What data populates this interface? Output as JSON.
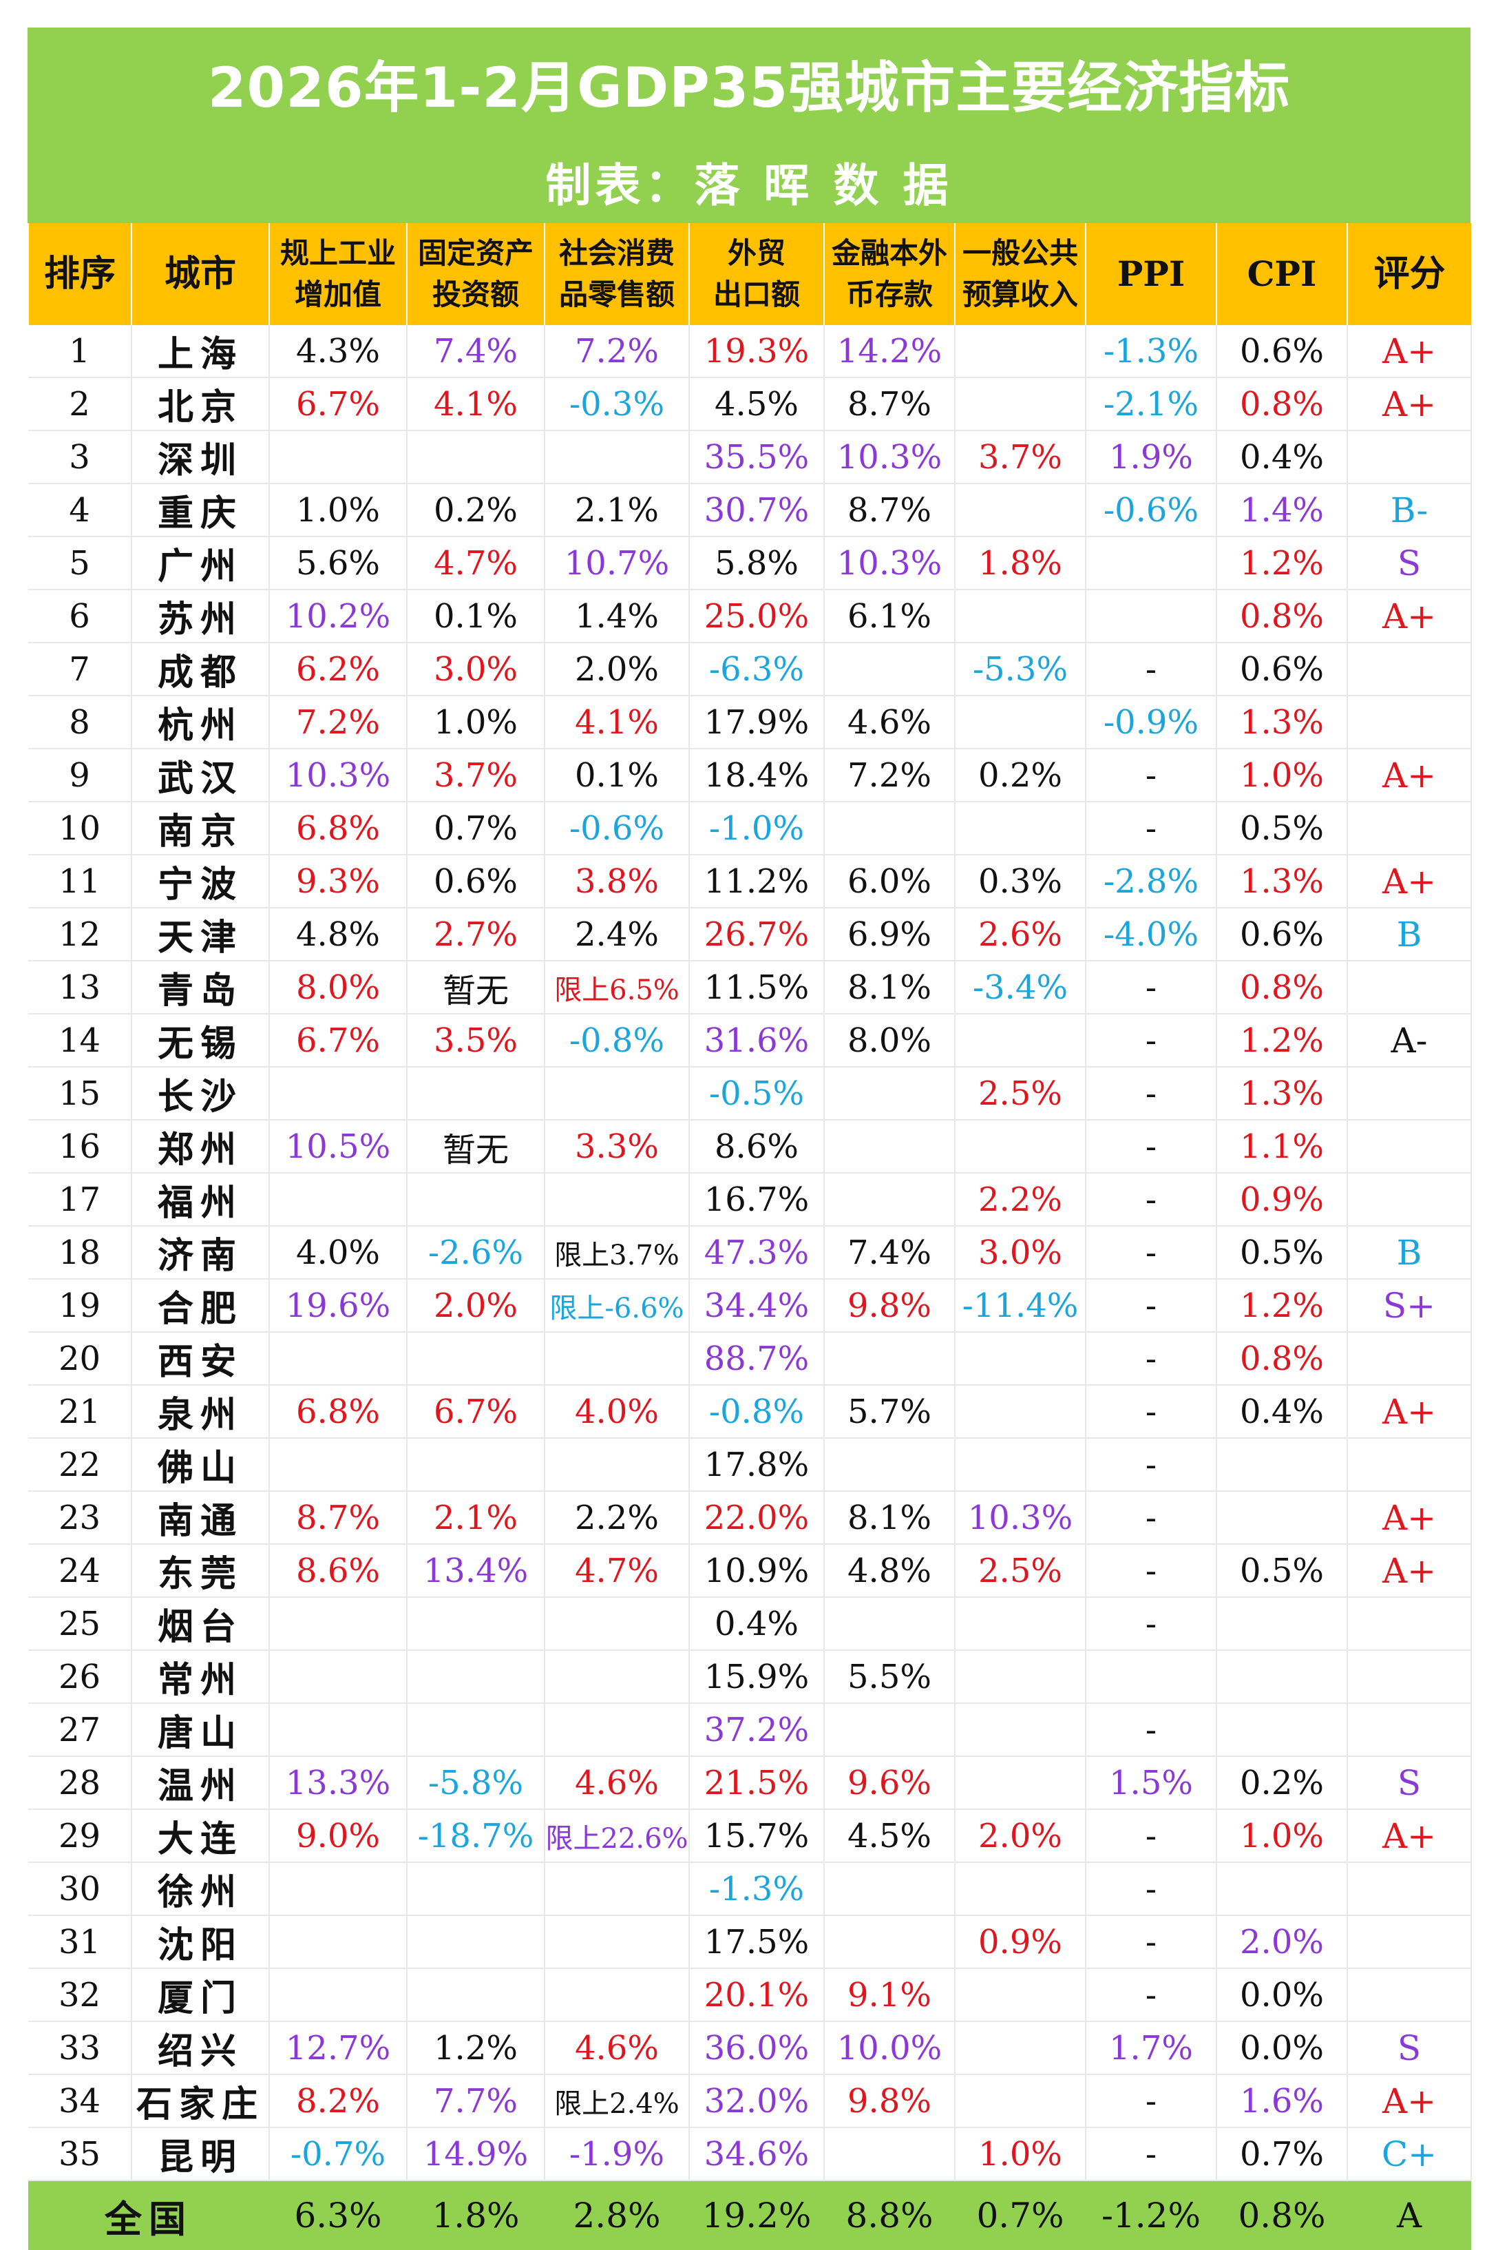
{
  "title": "2026年1-2月GDP35强城市主要经济指标",
  "subtitle": "制表：落 晖 数 据",
  "colors": {
    "green": "#92d050",
    "orange": "#ffc000",
    "black": "#111111",
    "red": "#e0161e",
    "purple": "#8a38d6",
    "blue": "#1aa6dd"
  },
  "headers": [
    [
      "排序"
    ],
    [
      "城市"
    ],
    [
      "规上工业",
      "增加值"
    ],
    [
      "固定资产",
      "投资额"
    ],
    [
      "社会消费",
      "品零售额"
    ],
    [
      "外贸",
      "出口额"
    ],
    [
      "金融本外",
      "币存款"
    ],
    [
      "一般公共",
      "预算收入"
    ],
    [
      "PPI"
    ],
    [
      "CPI"
    ],
    [
      "评分"
    ]
  ],
  "rows": [
    {
      "rank": "1",
      "city": "上海",
      "cells": [
        [
          "4.3%",
          "k"
        ],
        [
          "7.4%",
          "p"
        ],
        [
          "7.2%",
          "p"
        ],
        [
          "19.3%",
          "r"
        ],
        [
          "14.2%",
          "p"
        ],
        [
          "",
          ""
        ],
        [
          "-1.3%",
          "b"
        ],
        [
          "0.6%",
          "k"
        ],
        [
          "A+",
          "r"
        ]
      ]
    },
    {
      "rank": "2",
      "city": "北京",
      "cells": [
        [
          "6.7%",
          "r"
        ],
        [
          "4.1%",
          "r"
        ],
        [
          "-0.3%",
          "b"
        ],
        [
          "4.5%",
          "k"
        ],
        [
          "8.7%",
          "k"
        ],
        [
          "",
          ""
        ],
        [
          "-2.1%",
          "b"
        ],
        [
          "0.8%",
          "r"
        ],
        [
          "A+",
          "r"
        ]
      ]
    },
    {
      "rank": "3",
      "city": "深圳",
      "cells": [
        [
          "",
          ""
        ],
        [
          "",
          ""
        ],
        [
          "",
          ""
        ],
        [
          "35.5%",
          "p"
        ],
        [
          "10.3%",
          "p"
        ],
        [
          "3.7%",
          "r"
        ],
        [
          "1.9%",
          "p"
        ],
        [
          "0.4%",
          "k"
        ],
        [
          "",
          ""
        ]
      ]
    },
    {
      "rank": "4",
      "city": "重庆",
      "cells": [
        [
          "1.0%",
          "k"
        ],
        [
          "0.2%",
          "k"
        ],
        [
          "2.1%",
          "k"
        ],
        [
          "30.7%",
          "p"
        ],
        [
          "8.7%",
          "k"
        ],
        [
          "",
          ""
        ],
        [
          "-0.6%",
          "b"
        ],
        [
          "1.4%",
          "p"
        ],
        [
          "B-",
          "b"
        ]
      ]
    },
    {
      "rank": "5",
      "city": "广州",
      "cells": [
        [
          "5.6%",
          "k"
        ],
        [
          "4.7%",
          "r"
        ],
        [
          "10.7%",
          "p"
        ],
        [
          "5.8%",
          "k"
        ],
        [
          "10.3%",
          "p"
        ],
        [
          "1.8%",
          "r"
        ],
        [
          "",
          ""
        ],
        [
          "1.2%",
          "r"
        ],
        [
          "S",
          "p"
        ]
      ]
    },
    {
      "rank": "6",
      "city": "苏州",
      "cells": [
        [
          "10.2%",
          "p"
        ],
        [
          "0.1%",
          "k"
        ],
        [
          "1.4%",
          "k"
        ],
        [
          "25.0%",
          "r"
        ],
        [
          "6.1%",
          "k"
        ],
        [
          "",
          ""
        ],
        [
          "",
          ""
        ],
        [
          "0.8%",
          "r"
        ],
        [
          "A+",
          "r"
        ]
      ]
    },
    {
      "rank": "7",
      "city": "成都",
      "cells": [
        [
          "6.2%",
          "r"
        ],
        [
          "3.0%",
          "r"
        ],
        [
          "2.0%",
          "k"
        ],
        [
          "-6.3%",
          "b"
        ],
        [
          "",
          ""
        ],
        [
          "-5.3%",
          "b"
        ],
        [
          "-",
          "k"
        ],
        [
          "0.6%",
          "k"
        ],
        [
          "",
          ""
        ]
      ]
    },
    {
      "rank": "8",
      "city": "杭州",
      "cells": [
        [
          "7.2%",
          "r"
        ],
        [
          "1.0%",
          "k"
        ],
        [
          "4.1%",
          "r"
        ],
        [
          "17.9%",
          "k"
        ],
        [
          "4.6%",
          "k"
        ],
        [
          "",
          ""
        ],
        [
          "-0.9%",
          "b"
        ],
        [
          "1.3%",
          "r"
        ],
        [
          "",
          ""
        ]
      ]
    },
    {
      "rank": "9",
      "city": "武汉",
      "cells": [
        [
          "10.3%",
          "p"
        ],
        [
          "3.7%",
          "r"
        ],
        [
          "0.1%",
          "k"
        ],
        [
          "18.4%",
          "k"
        ],
        [
          "7.2%",
          "k"
        ],
        [
          "0.2%",
          "k"
        ],
        [
          "-",
          "k"
        ],
        [
          "1.0%",
          "r"
        ],
        [
          "A+",
          "r"
        ]
      ]
    },
    {
      "rank": "10",
      "city": "南京",
      "cells": [
        [
          "6.8%",
          "r"
        ],
        [
          "0.7%",
          "k"
        ],
        [
          "-0.6%",
          "b"
        ],
        [
          "-1.0%",
          "b"
        ],
        [
          "",
          ""
        ],
        [
          "",
          ""
        ],
        [
          "-",
          "k"
        ],
        [
          "0.5%",
          "k"
        ],
        [
          "",
          ""
        ]
      ]
    },
    {
      "rank": "11",
      "city": "宁波",
      "cells": [
        [
          "9.3%",
          "r"
        ],
        [
          "0.6%",
          "k"
        ],
        [
          "3.8%",
          "r"
        ],
        [
          "11.2%",
          "k"
        ],
        [
          "6.0%",
          "k"
        ],
        [
          "0.3%",
          "k"
        ],
        [
          "-2.8%",
          "b"
        ],
        [
          "1.3%",
          "r"
        ],
        [
          "A+",
          "r"
        ]
      ]
    },
    {
      "rank": "12",
      "city": "天津",
      "cells": [
        [
          "4.8%",
          "k"
        ],
        [
          "2.7%",
          "r"
        ],
        [
          "2.4%",
          "k"
        ],
        [
          "26.7%",
          "r"
        ],
        [
          "6.9%",
          "k"
        ],
        [
          "2.6%",
          "r"
        ],
        [
          "-4.0%",
          "b"
        ],
        [
          "0.6%",
          "k"
        ],
        [
          "B",
          "b"
        ]
      ]
    },
    {
      "rank": "13",
      "city": "青岛",
      "cells": [
        [
          "8.0%",
          "r"
        ],
        [
          "暂无",
          "k"
        ],
        [
          "限上6.5%",
          "rs"
        ],
        [
          "11.5%",
          "k"
        ],
        [
          "8.1%",
          "k"
        ],
        [
          "-3.4%",
          "b"
        ],
        [
          "-",
          "k"
        ],
        [
          "0.8%",
          "r"
        ],
        [
          "",
          ""
        ]
      ]
    },
    {
      "rank": "14",
      "city": "无锡",
      "cells": [
        [
          "6.7%",
          "r"
        ],
        [
          "3.5%",
          "r"
        ],
        [
          "-0.8%",
          "b"
        ],
        [
          "31.6%",
          "p"
        ],
        [
          "8.0%",
          "k"
        ],
        [
          "",
          ""
        ],
        [
          "-",
          "k"
        ],
        [
          "1.2%",
          "r"
        ],
        [
          "A-",
          "k"
        ]
      ]
    },
    {
      "rank": "15",
      "city": "长沙",
      "cells": [
        [
          "",
          ""
        ],
        [
          "",
          ""
        ],
        [
          "",
          ""
        ],
        [
          "-0.5%",
          "b"
        ],
        [
          "",
          ""
        ],
        [
          "2.5%",
          "r"
        ],
        [
          "-",
          "k"
        ],
        [
          "1.3%",
          "r"
        ],
        [
          "",
          ""
        ]
      ]
    },
    {
      "rank": "16",
      "city": "郑州",
      "cells": [
        [
          "10.5%",
          "p"
        ],
        [
          "暂无",
          "k"
        ],
        [
          "3.3%",
          "r"
        ],
        [
          "8.6%",
          "k"
        ],
        [
          "",
          ""
        ],
        [
          "",
          ""
        ],
        [
          "-",
          "k"
        ],
        [
          "1.1%",
          "r"
        ],
        [
          "",
          ""
        ]
      ]
    },
    {
      "rank": "17",
      "city": "福州",
      "cells": [
        [
          "",
          ""
        ],
        [
          "",
          ""
        ],
        [
          "",
          ""
        ],
        [
          "16.7%",
          "k"
        ],
        [
          "",
          ""
        ],
        [
          "2.2%",
          "r"
        ],
        [
          "-",
          "k"
        ],
        [
          "0.9%",
          "r"
        ],
        [
          "",
          ""
        ]
      ]
    },
    {
      "rank": "18",
      "city": "济南",
      "cells": [
        [
          "4.0%",
          "k"
        ],
        [
          "-2.6%",
          "b"
        ],
        [
          "限上3.7%",
          "ks"
        ],
        [
          "47.3%",
          "p"
        ],
        [
          "7.4%",
          "k"
        ],
        [
          "3.0%",
          "r"
        ],
        [
          "-",
          "k"
        ],
        [
          "0.5%",
          "k"
        ],
        [
          "B",
          "b"
        ]
      ]
    },
    {
      "rank": "19",
      "city": "合肥",
      "cells": [
        [
          "19.6%",
          "p"
        ],
        [
          "2.0%",
          "r"
        ],
        [
          "限上-6.6%",
          "bs"
        ],
        [
          "34.4%",
          "p"
        ],
        [
          "9.8%",
          "r"
        ],
        [
          "-11.4%",
          "b"
        ],
        [
          "-",
          "k"
        ],
        [
          "1.2%",
          "r"
        ],
        [
          "S+",
          "p"
        ]
      ]
    },
    {
      "rank": "20",
      "city": "西安",
      "cells": [
        [
          "",
          ""
        ],
        [
          "",
          ""
        ],
        [
          "",
          ""
        ],
        [
          "88.7%",
          "p"
        ],
        [
          "",
          ""
        ],
        [
          "",
          ""
        ],
        [
          "-",
          "k"
        ],
        [
          "0.8%",
          "r"
        ],
        [
          "",
          ""
        ]
      ]
    },
    {
      "rank": "21",
      "city": "泉州",
      "cells": [
        [
          "6.8%",
          "r"
        ],
        [
          "6.7%",
          "r"
        ],
        [
          "4.0%",
          "r"
        ],
        [
          "-0.8%",
          "b"
        ],
        [
          "5.7%",
          "k"
        ],
        [
          "",
          ""
        ],
        [
          "-",
          "k"
        ],
        [
          "0.4%",
          "k"
        ],
        [
          "A+",
          "r"
        ]
      ]
    },
    {
      "rank": "22",
      "city": "佛山",
      "cells": [
        [
          "",
          ""
        ],
        [
          "",
          ""
        ],
        [
          "",
          ""
        ],
        [
          "17.8%",
          "k"
        ],
        [
          "",
          ""
        ],
        [
          "",
          ""
        ],
        [
          "-",
          "k"
        ],
        [
          "",
          ""
        ],
        [
          "",
          ""
        ]
      ]
    },
    {
      "rank": "23",
      "city": "南通",
      "cells": [
        [
          "8.7%",
          "r"
        ],
        [
          "2.1%",
          "r"
        ],
        [
          "2.2%",
          "k"
        ],
        [
          "22.0%",
          "r"
        ],
        [
          "8.1%",
          "k"
        ],
        [
          "10.3%",
          "p"
        ],
        [
          "-",
          "k"
        ],
        [
          "",
          ""
        ],
        [
          "A+",
          "r"
        ]
      ]
    },
    {
      "rank": "24",
      "city": "东莞",
      "cells": [
        [
          "8.6%",
          "r"
        ],
        [
          "13.4%",
          "p"
        ],
        [
          "4.7%",
          "r"
        ],
        [
          "10.9%",
          "k"
        ],
        [
          "4.8%",
          "k"
        ],
        [
          "2.5%",
          "r"
        ],
        [
          "-",
          "k"
        ],
        [
          "0.5%",
          "k"
        ],
        [
          "A+",
          "r"
        ]
      ]
    },
    {
      "rank": "25",
      "city": "烟台",
      "cells": [
        [
          "",
          ""
        ],
        [
          "",
          ""
        ],
        [
          "",
          ""
        ],
        [
          "0.4%",
          "k"
        ],
        [
          "",
          ""
        ],
        [
          "",
          ""
        ],
        [
          "-",
          "k"
        ],
        [
          "",
          ""
        ],
        [
          "",
          ""
        ]
      ]
    },
    {
      "rank": "26",
      "city": "常州",
      "cells": [
        [
          "",
          ""
        ],
        [
          "",
          ""
        ],
        [
          "",
          ""
        ],
        [
          "15.9%",
          "k"
        ],
        [
          "5.5%",
          "k"
        ],
        [
          "",
          ""
        ],
        [
          "",
          ""
        ],
        [
          "",
          ""
        ],
        [
          "",
          ""
        ]
      ]
    },
    {
      "rank": "27",
      "city": "唐山",
      "cells": [
        [
          "",
          ""
        ],
        [
          "",
          ""
        ],
        [
          "",
          ""
        ],
        [
          "37.2%",
          "p"
        ],
        [
          "",
          ""
        ],
        [
          "",
          ""
        ],
        [
          "-",
          "k"
        ],
        [
          "",
          ""
        ],
        [
          "",
          ""
        ]
      ]
    },
    {
      "rank": "28",
      "city": "温州",
      "cells": [
        [
          "13.3%",
          "p"
        ],
        [
          "-5.8%",
          "b"
        ],
        [
          "4.6%",
          "r"
        ],
        [
          "21.5%",
          "r"
        ],
        [
          "9.6%",
          "r"
        ],
        [
          "",
          ""
        ],
        [
          "1.5%",
          "p"
        ],
        [
          "0.2%",
          "k"
        ],
        [
          "S",
          "p"
        ]
      ]
    },
    {
      "rank": "29",
      "city": "大连",
      "cells": [
        [
          "9.0%",
          "r"
        ],
        [
          "-18.7%",
          "b"
        ],
        [
          "限上22.6%",
          "ps"
        ],
        [
          "15.7%",
          "k"
        ],
        [
          "4.5%",
          "k"
        ],
        [
          "2.0%",
          "r"
        ],
        [
          "-",
          "k"
        ],
        [
          "1.0%",
          "r"
        ],
        [
          "A+",
          "r"
        ]
      ]
    },
    {
      "rank": "30",
      "city": "徐州",
      "cells": [
        [
          "",
          ""
        ],
        [
          "",
          ""
        ],
        [
          "",
          ""
        ],
        [
          "-1.3%",
          "b"
        ],
        [
          "",
          ""
        ],
        [
          "",
          ""
        ],
        [
          "-",
          "k"
        ],
        [
          "",
          ""
        ],
        [
          "",
          ""
        ]
      ]
    },
    {
      "rank": "31",
      "city": "沈阳",
      "cells": [
        [
          "",
          ""
        ],
        [
          "",
          ""
        ],
        [
          "",
          ""
        ],
        [
          "17.5%",
          "k"
        ],
        [
          "",
          ""
        ],
        [
          "0.9%",
          "r"
        ],
        [
          "-",
          "k"
        ],
        [
          "2.0%",
          "p"
        ],
        [
          "",
          ""
        ]
      ]
    },
    {
      "rank": "32",
      "city": "厦门",
      "cells": [
        [
          "",
          ""
        ],
        [
          "",
          ""
        ],
        [
          "",
          ""
        ],
        [
          "20.1%",
          "r"
        ],
        [
          "9.1%",
          "r"
        ],
        [
          "",
          ""
        ],
        [
          "-",
          "k"
        ],
        [
          "0.0%",
          "k"
        ],
        [
          "",
          ""
        ]
      ]
    },
    {
      "rank": "33",
      "city": "绍兴",
      "cells": [
        [
          "12.7%",
          "p"
        ],
        [
          "1.2%",
          "k"
        ],
        [
          "4.6%",
          "r"
        ],
        [
          "36.0%",
          "p"
        ],
        [
          "10.0%",
          "p"
        ],
        [
          "",
          ""
        ],
        [
          "1.7%",
          "p"
        ],
        [
          "0.0%",
          "k"
        ],
        [
          "S",
          "p"
        ]
      ]
    },
    {
      "rank": "34",
      "city": "石家庄",
      "cells": [
        [
          "8.2%",
          "r"
        ],
        [
          "7.7%",
          "p"
        ],
        [
          "限上2.4%",
          "ks"
        ],
        [
          "32.0%",
          "p"
        ],
        [
          "9.8%",
          "r"
        ],
        [
          "",
          ""
        ],
        [
          "-",
          "k"
        ],
        [
          "1.6%",
          "p"
        ],
        [
          "A+",
          "r"
        ]
      ]
    },
    {
      "rank": "35",
      "city": "昆明",
      "cells": [
        [
          "-0.7%",
          "b"
        ],
        [
          "14.9%",
          "p"
        ],
        [
          "-1.9%",
          "p"
        ],
        [
          "34.6%",
          "p"
        ],
        [
          "",
          ""
        ],
        [
          "1.0%",
          "r"
        ],
        [
          "-",
          "k"
        ],
        [
          "0.7%",
          "k"
        ],
        [
          "C+",
          "b"
        ]
      ]
    }
  ],
  "national": {
    "label": "全国",
    "cells": [
      "6.3%",
      "1.8%",
      "2.8%",
      "19.2%",
      "8.8%",
      "0.7%",
      "-1.2%",
      "0.8%",
      "A"
    ]
  }
}
